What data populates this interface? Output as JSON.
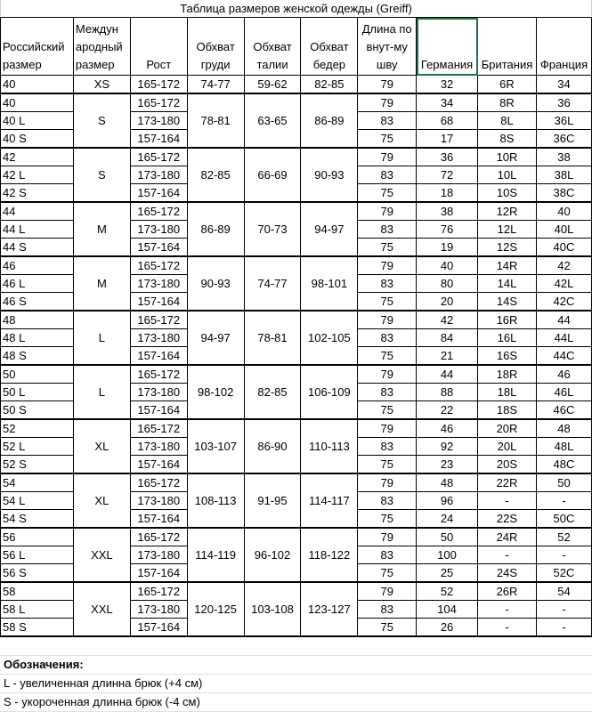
{
  "title": "Таблица размеров женской одежды (Greiff)",
  "headers": [
    "Российский размер",
    "Междун ародный размер",
    "Рост",
    "Обхват груди",
    "Обхват талии",
    "Обхват бедер",
    "Длина по внут-му шву",
    "Германия",
    "Британия",
    "Франция"
  ],
  "first_row": {
    "rus": "40",
    "intl": "XS",
    "height": "165-172",
    "chest": "74-77",
    "waist": "59-62",
    "hips": "82-85",
    "inseam": "79",
    "de": "32",
    "uk": "6R",
    "fr": "34"
  },
  "groups": [
    {
      "intl": "S",
      "chest": "78-81",
      "waist": "63-65",
      "hips": "86-89",
      "rows": [
        {
          "rus": "40",
          "height": "165-172",
          "inseam": "79",
          "de": "34",
          "uk": "8R",
          "fr": "36"
        },
        {
          "rus": "40 L",
          "height": "173-180",
          "inseam": "83",
          "de": "68",
          "uk": "8L",
          "fr": "36L"
        },
        {
          "rus": "40 S",
          "height": "157-164",
          "inseam": "75",
          "de": "17",
          "uk": "8S",
          "fr": "36C"
        }
      ]
    },
    {
      "intl": "S",
      "chest": "82-85",
      "waist": "66-69",
      "hips": "90-93",
      "rows": [
        {
          "rus": "42",
          "height": "165-172",
          "inseam": "79",
          "de": "36",
          "uk": "10R",
          "fr": "38"
        },
        {
          "rus": "42 L",
          "height": "173-180",
          "inseam": "83",
          "de": "72",
          "uk": "10L",
          "fr": "38L"
        },
        {
          "rus": "42 S",
          "height": "157-164",
          "inseam": "75",
          "de": "18",
          "uk": "10S",
          "fr": "38C"
        }
      ]
    },
    {
      "intl": "M",
      "chest": "86-89",
      "waist": "70-73",
      "hips": "94-97",
      "rows": [
        {
          "rus": "44",
          "height": "165-172",
          "inseam": "79",
          "de": "38",
          "uk": "12R",
          "fr": "40"
        },
        {
          "rus": "44 L",
          "height": "173-180",
          "inseam": "83",
          "de": "76",
          "uk": "12L",
          "fr": "40L"
        },
        {
          "rus": "44 S",
          "height": "157-164",
          "inseam": "75",
          "de": "19",
          "uk": "12S",
          "fr": "40C"
        }
      ]
    },
    {
      "intl": "M",
      "chest": "90-93",
      "waist": "74-77",
      "hips": "98-101",
      "rows": [
        {
          "rus": "46",
          "height": "165-172",
          "inseam": "79",
          "de": "40",
          "uk": "14R",
          "fr": "42"
        },
        {
          "rus": "46 L",
          "height": "173-180",
          "inseam": "83",
          "de": "80",
          "uk": "14L",
          "fr": "42L"
        },
        {
          "rus": "46 S",
          "height": "157-164",
          "inseam": "75",
          "de": "20",
          "uk": "14S",
          "fr": "42C"
        }
      ]
    },
    {
      "intl": "L",
      "chest": "94-97",
      "waist": "78-81",
      "hips": "102-105",
      "rows": [
        {
          "rus": "48",
          "height": "165-172",
          "inseam": "79",
          "de": "42",
          "uk": "16R",
          "fr": "44"
        },
        {
          "rus": "48 L",
          "height": "173-180",
          "inseam": "83",
          "de": "84",
          "uk": "16L",
          "fr": "44L"
        },
        {
          "rus": "48 S",
          "height": "157-164",
          "inseam": "75",
          "de": "21",
          "uk": "16S",
          "fr": "44C"
        }
      ]
    },
    {
      "intl": "L",
      "chest": "98-102",
      "waist": "82-85",
      "hips": "106-109",
      "rows": [
        {
          "rus": "50",
          "height": "165-172",
          "inseam": "79",
          "de": "44",
          "uk": "18R",
          "fr": "46"
        },
        {
          "rus": "50 L",
          "height": "173-180",
          "inseam": "83",
          "de": "88",
          "uk": "18L",
          "fr": "46L"
        },
        {
          "rus": "50 S",
          "height": "157-164",
          "inseam": "75",
          "de": "22",
          "uk": "18S",
          "fr": "46C"
        }
      ]
    },
    {
      "intl": "XL",
      "chest": "103-107",
      "waist": "86-90",
      "hips": "110-113",
      "rows": [
        {
          "rus": "52",
          "height": "165-172",
          "inseam": "79",
          "de": "46",
          "uk": "20R",
          "fr": "48"
        },
        {
          "rus": "52 L",
          "height": "173-180",
          "inseam": "83",
          "de": "92",
          "uk": "20L",
          "fr": "48L"
        },
        {
          "rus": "52 S",
          "height": "157-164",
          "inseam": "75",
          "de": "23",
          "uk": "20S",
          "fr": "48C"
        }
      ]
    },
    {
      "intl": "XL",
      "chest": "108-113",
      "waist": "91-95",
      "hips": "114-117",
      "rows": [
        {
          "rus": "54",
          "height": "165-172",
          "inseam": "79",
          "de": "48",
          "uk": "22R",
          "fr": "50"
        },
        {
          "rus": "54 L",
          "height": "173-180",
          "inseam": "83",
          "de": "96",
          "uk": "-",
          "fr": "-"
        },
        {
          "rus": "54 S",
          "height": "157-164",
          "inseam": "75",
          "de": "24",
          "uk": "22S",
          "fr": "50C"
        }
      ]
    },
    {
      "intl": "XXL",
      "chest": "114-119",
      "waist": "96-102",
      "hips": "118-122",
      "rows": [
        {
          "rus": "56",
          "height": "165-172",
          "inseam": "79",
          "de": "50",
          "uk": "24R",
          "fr": "52"
        },
        {
          "rus": "56 L",
          "height": "173-180",
          "inseam": "83",
          "de": "100",
          "uk": "-",
          "fr": "-"
        },
        {
          "rus": "56 S",
          "height": "157-164",
          "inseam": "75",
          "de": "25",
          "uk": "24S",
          "fr": "52C"
        }
      ]
    },
    {
      "intl": "XXL",
      "chest": "120-125",
      "waist": "103-108",
      "hips": "123-127",
      "rows": [
        {
          "rus": "58",
          "height": "165-172",
          "inseam": "79",
          "de": "52",
          "uk": "26R",
          "fr": "54"
        },
        {
          "rus": "58 L",
          "height": "173-180",
          "inseam": "83",
          "de": "104",
          "uk": "-",
          "fr": "-"
        },
        {
          "rus": "58 S",
          "height": "157-164",
          "inseam": "75",
          "de": "26",
          "uk": "-",
          "fr": "-"
        }
      ]
    }
  ],
  "legend": {
    "heading": "Обозначения:",
    "items": [
      "L - увеличенная длинна брюк (+4 см)",
      "S - укороченная длинна брюк (-4 см)"
    ]
  },
  "colors": {
    "selection": "#217346"
  }
}
